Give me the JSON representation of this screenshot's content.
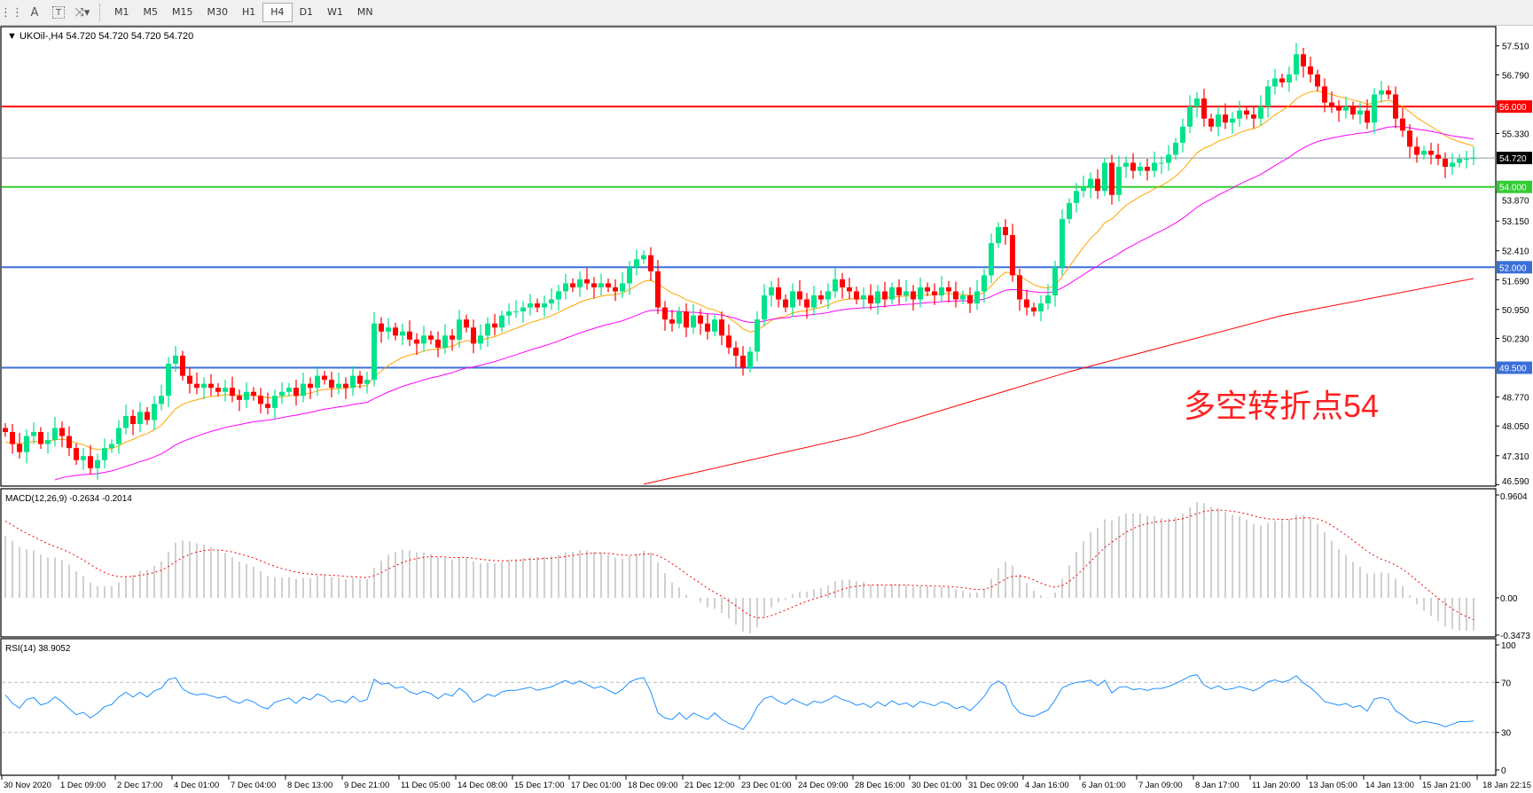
{
  "toolbar": {
    "icons": [
      "grid-icon",
      "text-icon",
      "text-label-icon",
      "arrows-icon"
    ],
    "timeframes": [
      "M1",
      "M5",
      "M15",
      "M30",
      "H1",
      "H4",
      "D1",
      "W1",
      "MN"
    ],
    "selected": "H4"
  },
  "chart_data": [
    {
      "type": "candlestick",
      "title": "UKOil-,H4  54.720 54.720 54.720 54.720",
      "ylim": [
        46.59,
        57.51
      ],
      "y_ticks": [
        "57.510",
        "56.790",
        "55.330",
        "53.870",
        "53.150",
        "52.410",
        "51.690",
        "50.950",
        "50.230",
        "48.770",
        "48.050",
        "47.310",
        "46.590"
      ],
      "x_ticks": [
        "30 Nov 2020",
        "1 Dec 09:00",
        "2 Dec 17:00",
        "4 Dec 01:00",
        "7 Dec 04:00",
        "8 Dec 13:00",
        "9 Dec 21:00",
        "11 Dec 05:00",
        "14 Dec 08:00",
        "15 Dec 17:00",
        "17 Dec 01:00",
        "18 Dec 09:00",
        "21 Dec 12:00",
        "23 Dec 01:00",
        "24 Dec 09:00",
        "28 Dec 16:00",
        "30 Dec 01:00",
        "31 Dec 09:00",
        "4 Jan 16:00",
        "6 Jan 01:00",
        "7 Jan 09:00",
        "8 Jan 17:00",
        "11 Jan 20:00",
        "13 Jan 05:00",
        "14 Jan 13:00",
        "15 Jan 21:00",
        "18 Jan 22:15"
      ],
      "close": [
        47.9,
        47.6,
        47.4,
        47.8,
        47.9,
        47.6,
        47.7,
        48.0,
        47.8,
        47.5,
        47.2,
        47.3,
        47.0,
        47.2,
        47.5,
        47.6,
        48.0,
        48.3,
        48.1,
        48.4,
        48.2,
        48.6,
        48.8,
        49.6,
        49.8,
        49.3,
        49.1,
        49.0,
        49.1,
        49.0,
        48.9,
        49.0,
        48.8,
        48.7,
        48.9,
        48.8,
        48.6,
        48.5,
        48.8,
        48.9,
        49.0,
        48.8,
        49.1,
        49.0,
        49.3,
        49.2,
        49.0,
        49.1,
        49.0,
        49.3,
        49.1,
        49.2,
        50.6,
        50.4,
        50.5,
        50.3,
        50.4,
        50.2,
        50.1,
        50.3,
        50.2,
        50.0,
        50.3,
        50.2,
        50.7,
        50.5,
        50.1,
        50.3,
        50.6,
        50.5,
        50.8,
        50.9,
        50.9,
        51.0,
        51.1,
        51.0,
        51.1,
        51.2,
        51.4,
        51.6,
        51.5,
        51.7,
        51.6,
        51.5,
        51.6,
        51.5,
        51.4,
        51.6,
        52.0,
        52.2,
        52.3,
        51.9,
        51.0,
        50.7,
        50.6,
        50.9,
        50.5,
        50.8,
        50.6,
        50.4,
        50.7,
        50.3,
        50.0,
        49.8,
        49.5,
        49.9,
        50.7,
        51.3,
        51.5,
        51.2,
        51.0,
        51.4,
        51.2,
        51.0,
        51.3,
        51.2,
        51.4,
        51.7,
        51.5,
        51.4,
        51.2,
        51.3,
        51.1,
        51.4,
        51.2,
        51.5,
        51.3,
        51.4,
        51.2,
        51.5,
        51.4,
        51.3,
        51.5,
        51.4,
        51.2,
        51.3,
        51.1,
        51.4,
        51.8,
        52.6,
        53.0,
        52.8,
        51.8,
        51.2,
        51.0,
        50.9,
        51.1,
        51.3,
        52.0,
        53.2,
        53.6,
        53.9,
        54.0,
        54.2,
        53.9,
        54.6,
        53.8,
        54.5,
        54.6,
        54.4,
        54.5,
        54.4,
        54.6,
        54.6,
        54.8,
        55.1,
        55.5,
        56.0,
        56.2,
        55.7,
        55.5,
        55.8,
        55.6,
        55.7,
        55.9,
        55.8,
        55.7,
        56.0,
        56.5,
        56.7,
        56.6,
        56.8,
        57.3,
        57.0,
        56.8,
        56.5,
        56.1,
        56.0,
        55.9,
        56.0,
        55.8,
        55.9,
        55.6,
        56.3,
        56.4,
        56.3,
        55.7,
        55.4,
        55.0,
        54.8,
        54.9,
        54.8,
        54.7,
        54.5,
        54.6,
        54.7,
        54.7,
        54.72
      ],
      "up_color": "#00e38a",
      "down_color": "#ff0000",
      "ma_fast_color": "#ffa500",
      "ma_mid_color": "#ff00ff",
      "ma_slow": {
        "color": "#ff0000",
        "points": [
          [
            90,
            46.6
          ],
          [
            120,
            47.8
          ],
          [
            150,
            49.4
          ],
          [
            180,
            50.8
          ],
          [
            207,
            51.72
          ]
        ]
      },
      "levels": [
        {
          "value": 56.0,
          "label": "56.000",
          "color": "#ff0000"
        },
        {
          "value": 54.72,
          "label": "54.720",
          "color": "#000000",
          "line": "#8c9aa8"
        },
        {
          "value": 54.0,
          "label": "54.000",
          "color": "#33cc33"
        },
        {
          "value": 52.0,
          "label": "52.000",
          "color": "#3a6fd8"
        },
        {
          "value": 49.5,
          "label": "49.500",
          "color": "#3a6fd8"
        }
      ],
      "annotation": {
        "text": "多空转折点54",
        "color": "#ff2020"
      }
    },
    {
      "type": "macd",
      "title": "MACD(12,26,9) -0.2634 -0.2014",
      "ylim": [
        -0.3473,
        0.9604
      ],
      "y_ticks": [
        "0.9604",
        "0.00",
        "-0.3473"
      ],
      "histogram_color": "#c0c0c0",
      "signal_color": "#ff0000"
    },
    {
      "type": "rsi",
      "title": "RSI(14) 38.9052",
      "ylim": [
        0,
        100
      ],
      "y_ticks": [
        "100",
        "70",
        "30",
        "0"
      ],
      "line_color": "#1e90ff"
    }
  ]
}
